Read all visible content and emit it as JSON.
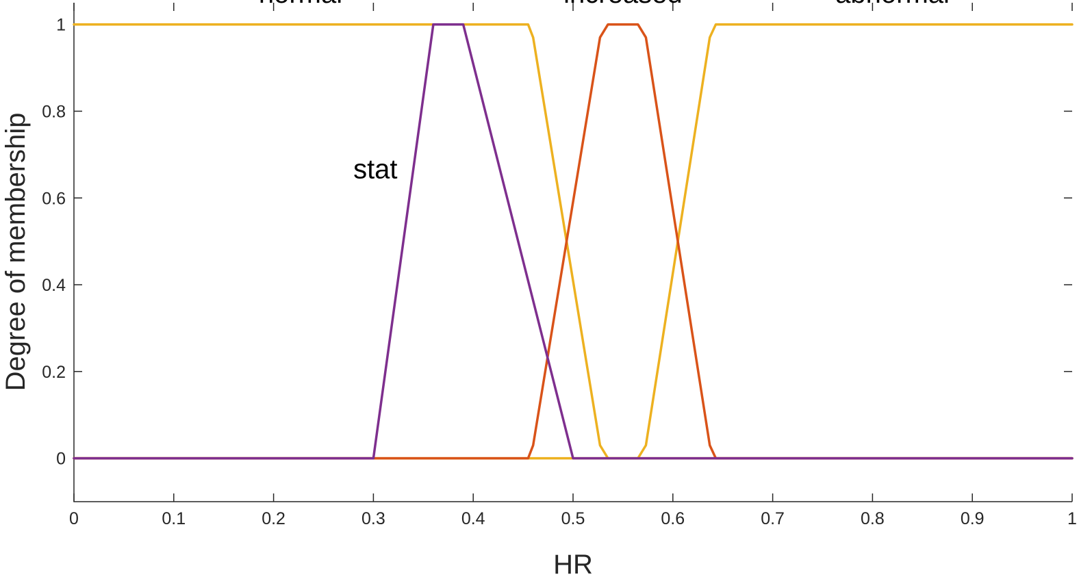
{
  "chart_data": {
    "type": "line",
    "title": "",
    "xlabel": "HR",
    "ylabel": "Degree of membership",
    "xlim": [
      0,
      1
    ],
    "ylim": [
      -0.1,
      1.05
    ],
    "xticks": [
      "0",
      "0.1",
      "0.2",
      "0.3",
      "0.4",
      "0.5",
      "0.6",
      "0.7",
      "0.8",
      "0.9",
      "1"
    ],
    "yticks": [
      "0",
      "0.2",
      "0.4",
      "0.6",
      "0.8",
      "1"
    ],
    "grid": false,
    "series": [
      {
        "name": "normal",
        "color": "#EDB120",
        "x": [
          0,
          0.455,
          0.46,
          0.527,
          0.535,
          1
        ],
        "y": [
          1,
          1,
          0.97,
          0.03,
          0,
          0
        ],
        "label_x": 0.227,
        "label_y": 1.05
      },
      {
        "name": "increased",
        "color": "#D95319",
        "x": [
          0,
          0.455,
          0.46,
          0.527,
          0.535,
          0.565,
          0.573,
          0.637,
          0.643,
          1
        ],
        "y": [
          0,
          0,
          0.03,
          0.97,
          1,
          1,
          0.97,
          0.03,
          0,
          0
        ],
        "label_x": 0.55,
        "label_y": 1.05
      },
      {
        "name": "abnormal",
        "color": "#EDB120",
        "x": [
          0,
          0.565,
          0.573,
          0.637,
          0.643,
          1
        ],
        "y": [
          0,
          0,
          0.03,
          0.97,
          1,
          1
        ],
        "label_x": 0.82,
        "label_y": 1.05
      },
      {
        "name": "stat",
        "color": "#7E2F8E",
        "x": [
          0,
          0.3,
          0.36,
          0.39,
          0.5,
          1
        ],
        "y": [
          0,
          0,
          1,
          1,
          0,
          0
        ],
        "label_x": 0.302,
        "label_y": 0.645
      }
    ]
  }
}
